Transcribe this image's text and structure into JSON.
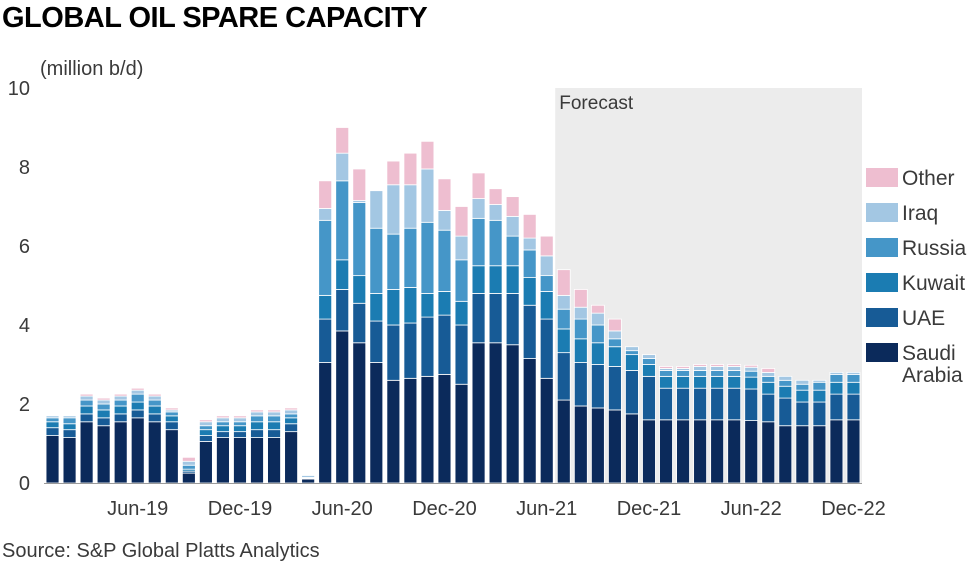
{
  "title": "GLOBAL OIL SPARE CAPACITY",
  "source": "Source: S&P Global Platts Analytics",
  "chart_data": {
    "type": "bar",
    "stacked": true,
    "ylabel": "(million b/d)",
    "ylim": [
      0,
      10
    ],
    "yticks": [
      0,
      2,
      4,
      6,
      8,
      10
    ],
    "grid": false,
    "legend_position": "right",
    "forecast_label": "Forecast",
    "forecast_start": "Jul-21",
    "categories": [
      "Jan-19",
      "Feb-19",
      "Mar-19",
      "Apr-19",
      "May-19",
      "Jun-19",
      "Jul-19",
      "Aug-19",
      "Sep-19",
      "Oct-19",
      "Nov-19",
      "Dec-19",
      "Jan-20",
      "Feb-20",
      "Mar-20",
      "Apr-20",
      "May-20",
      "Jun-20",
      "Jul-20",
      "Aug-20",
      "Sep-20",
      "Oct-20",
      "Nov-20",
      "Dec-20",
      "Jan-21",
      "Feb-21",
      "Mar-21",
      "Apr-21",
      "May-21",
      "Jun-21",
      "Jul-21",
      "Aug-21",
      "Sep-21",
      "Oct-21",
      "Nov-21",
      "Dec-21",
      "Jan-22",
      "Feb-22",
      "Mar-22",
      "Apr-22",
      "May-22",
      "Jun-22",
      "Jul-22",
      "Aug-22",
      "Sep-22",
      "Oct-22",
      "Nov-22",
      "Dec-22"
    ],
    "xtick_labels": [
      "Jun-19",
      "Dec-19",
      "Jun-20",
      "Dec-20",
      "Jun-21",
      "Dec-21",
      "Jun-22",
      "Dec-22"
    ],
    "series": [
      {
        "name": "Saudi Arabia",
        "color": "#0b2a5b",
        "values": [
          1.2,
          1.15,
          1.55,
          1.45,
          1.55,
          1.65,
          1.55,
          1.35,
          0.25,
          1.05,
          1.15,
          1.15,
          1.15,
          1.15,
          1.3,
          0.1,
          3.05,
          3.85,
          3.55,
          3.05,
          2.6,
          2.65,
          2.7,
          2.75,
          2.5,
          3.55,
          3.55,
          3.5,
          3.15,
          2.65,
          2.1,
          1.95,
          1.9,
          1.85,
          1.75,
          1.6,
          1.6,
          1.6,
          1.6,
          1.6,
          1.6,
          1.58,
          1.55,
          1.45,
          1.45,
          1.45,
          1.6,
          1.6
        ]
      },
      {
        "name": "UAE",
        "color": "#175b96",
        "values": [
          0.2,
          0.2,
          0.2,
          0.2,
          0.2,
          0.2,
          0.2,
          0.2,
          0.05,
          0.15,
          0.15,
          0.15,
          0.2,
          0.2,
          0.2,
          0.02,
          1.1,
          1.05,
          1.0,
          1.05,
          1.4,
          1.4,
          1.5,
          1.5,
          1.5,
          1.25,
          1.25,
          1.3,
          1.35,
          1.5,
          1.2,
          1.1,
          1.1,
          1.1,
          1.1,
          1.1,
          0.8,
          0.8,
          0.8,
          0.8,
          0.8,
          0.8,
          0.7,
          0.7,
          0.6,
          0.6,
          0.65,
          0.65
        ]
      },
      {
        "name": "Kuwait",
        "color": "#1b7cb2",
        "values": [
          0.15,
          0.15,
          0.2,
          0.2,
          0.2,
          0.2,
          0.2,
          0.15,
          0.05,
          0.15,
          0.15,
          0.15,
          0.2,
          0.2,
          0.15,
          0.02,
          0.6,
          0.75,
          0.7,
          0.7,
          0.9,
          0.9,
          0.6,
          0.6,
          0.6,
          0.7,
          0.7,
          0.7,
          0.7,
          0.7,
          0.6,
          0.6,
          0.55,
          0.5,
          0.4,
          0.3,
          0.3,
          0.3,
          0.3,
          0.3,
          0.3,
          0.3,
          0.3,
          0.3,
          0.3,
          0.3,
          0.3,
          0.3
        ]
      },
      {
        "name": "Russia",
        "color": "#4596c8",
        "values": [
          0.1,
          0.15,
          0.15,
          0.15,
          0.15,
          0.2,
          0.15,
          0.1,
          0.1,
          0.1,
          0.1,
          0.1,
          0.15,
          0.15,
          0.1,
          0.0,
          1.9,
          2.0,
          1.85,
          1.65,
          1.4,
          1.5,
          1.8,
          1.55,
          1.05,
          1.2,
          1.15,
          0.75,
          0.7,
          0.4,
          0.5,
          0.5,
          0.45,
          0.2,
          0.1,
          0.15,
          0.15,
          0.15,
          0.15,
          0.15,
          0.15,
          0.15,
          0.15,
          0.15,
          0.15,
          0.2,
          0.2,
          0.2
        ]
      },
      {
        "name": "Iraq",
        "color": "#a3c7e3",
        "values": [
          0.05,
          0.05,
          0.1,
          0.1,
          0.1,
          0.1,
          0.1,
          0.05,
          0.1,
          0.1,
          0.1,
          0.1,
          0.1,
          0.1,
          0.1,
          0.05,
          0.3,
          0.7,
          0.05,
          0.95,
          1.25,
          1.1,
          1.35,
          0.5,
          0.6,
          0.5,
          0.4,
          0.5,
          0.3,
          0.5,
          0.35,
          0.3,
          0.3,
          0.2,
          0.1,
          0.1,
          0.05,
          0.05,
          0.1,
          0.1,
          0.1,
          0.1,
          0.1,
          0.1,
          0.1,
          0.05,
          0.05,
          0.05
        ]
      },
      {
        "name": "Other",
        "color": "#eebed0",
        "values": [
          0.0,
          0.0,
          0.05,
          0.05,
          0.05,
          0.05,
          0.05,
          0.05,
          0.1,
          0.05,
          0.05,
          0.05,
          0.05,
          0.05,
          0.05,
          0.0,
          0.7,
          0.65,
          0.8,
          0.0,
          0.6,
          0.8,
          0.7,
          0.8,
          0.75,
          0.65,
          0.4,
          0.5,
          0.6,
          0.5,
          0.65,
          0.45,
          0.2,
          0.3,
          0.0,
          0.0,
          0.05,
          0.05,
          0.05,
          0.05,
          0.05,
          0.05,
          0.1,
          0.0,
          0.0,
          0.0,
          0.0,
          0.0
        ]
      }
    ]
  }
}
